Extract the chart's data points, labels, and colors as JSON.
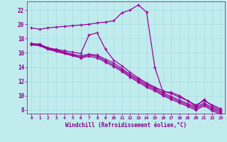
{
  "background_color": "#c0ecee",
  "grid_color": "#a8dce0",
  "line_color": "#990099",
  "xlabel": "Windchill (Refroidissement éolien,°C)",
  "xlabel_color": "#880088",
  "tick_color": "#880088",
  "xlim": [
    -0.5,
    23.5
  ],
  "ylim": [
    7.5,
    23.2
  ],
  "yticks": [
    8,
    10,
    12,
    14,
    16,
    18,
    20,
    22
  ],
  "xticks": [
    0,
    1,
    2,
    3,
    4,
    5,
    6,
    7,
    8,
    9,
    10,
    11,
    12,
    13,
    14,
    15,
    16,
    17,
    18,
    19,
    20,
    21,
    22,
    23
  ],
  "lines": [
    [
      19.5,
      19.3,
      19.5,
      19.6,
      19.7,
      19.8,
      19.9,
      20.0,
      20.2,
      20.3,
      20.5,
      21.6,
      22.0,
      22.7,
      21.7,
      14.0,
      10.5,
      10.5,
      10.0,
      9.3,
      8.5,
      9.5,
      8.5,
      8.0
    ],
    [
      17.3,
      17.2,
      16.7,
      16.5,
      16.3,
      16.1,
      15.9,
      18.5,
      18.8,
      16.5,
      15.0,
      14.2,
      13.3,
      12.5,
      11.8,
      11.2,
      10.7,
      10.3,
      9.8,
      9.3,
      8.7,
      9.3,
      8.7,
      8.2
    ],
    [
      17.3,
      17.2,
      16.7,
      16.4,
      16.1,
      15.8,
      15.6,
      15.8,
      15.7,
      15.1,
      14.6,
      13.8,
      13.0,
      12.3,
      11.6,
      11.1,
      10.4,
      9.9,
      9.4,
      8.9,
      8.4,
      9.0,
      8.3,
      7.8
    ],
    [
      17.2,
      17.1,
      16.6,
      16.3,
      16.0,
      15.7,
      15.4,
      15.7,
      15.5,
      14.9,
      14.3,
      13.6,
      12.8,
      12.1,
      11.4,
      10.9,
      10.2,
      9.7,
      9.2,
      8.7,
      8.2,
      8.8,
      8.1,
      7.6
    ],
    [
      17.1,
      17.0,
      16.5,
      16.2,
      15.9,
      15.6,
      15.3,
      15.5,
      15.3,
      14.7,
      14.1,
      13.4,
      12.6,
      11.9,
      11.2,
      10.7,
      10.0,
      9.5,
      9.0,
      8.5,
      8.0,
      8.6,
      7.9,
      7.4
    ]
  ]
}
